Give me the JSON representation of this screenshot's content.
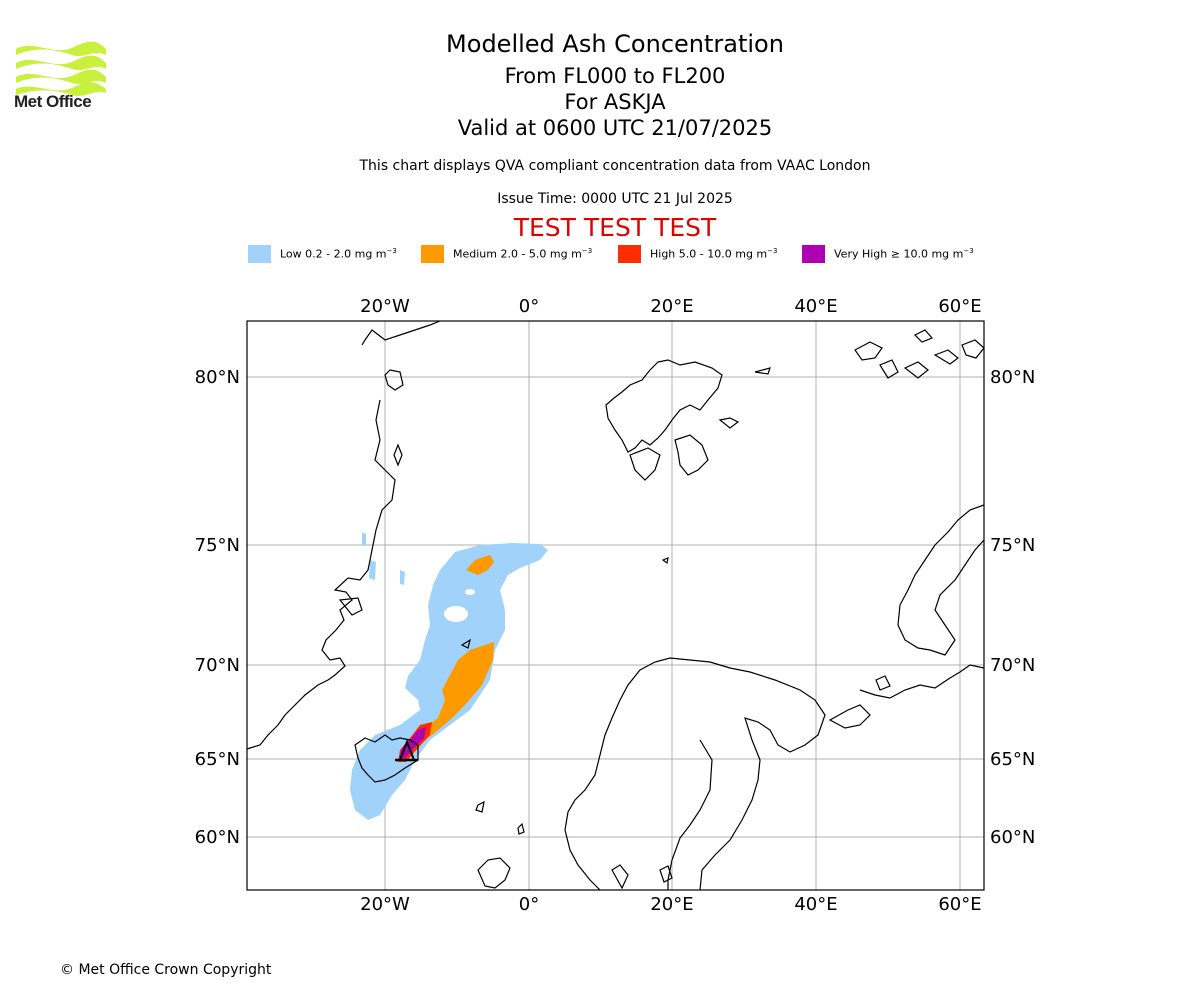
{
  "header": {
    "logo_text": "Met Office",
    "title": "Modelled Ash Concentration",
    "subtitle_levels": "From FL000 to FL200",
    "subtitle_volcano": "For ASKJA",
    "subtitle_valid": "Valid at 0600 UTC 21/07/2025",
    "description": "This chart displays QVA compliant concentration data from VAAC London",
    "issue_time": "Issue Time: 0000 UTC 21 Jul 2025",
    "test_banner": "TEST TEST TEST"
  },
  "legend": [
    {
      "label": "Low 0.2 - 2.0 mg m",
      "unit_exp": "−3",
      "color": "#a1d2fa"
    },
    {
      "label": "Medium 2.0 - 5.0 mg m",
      "unit_exp": "−3",
      "color": "#fd9a00"
    },
    {
      "label": "High 5.0 - 10.0 mg m",
      "unit_exp": "−3",
      "color": "#fe2d00"
    },
    {
      "label": "Very High ≥ 10.0 mg m",
      "unit_exp": "−3",
      "color": "#b000b5"
    }
  ],
  "map": {
    "longitude_labels": [
      "20°W",
      "0°",
      "20°E",
      "40°E",
      "60°E"
    ],
    "latitude_labels": [
      "80°N",
      "75°N",
      "70°N",
      "65°N",
      "60°N"
    ],
    "gridlines": true,
    "volcano_marker": "triangle"
  },
  "footer": {
    "copyright": "© Met Office Crown Copyright"
  },
  "colors": {
    "test_banner": "#e00000",
    "logo_green": "#c8f03c",
    "grid": "#b0b0b0",
    "coastline": "#000000"
  }
}
